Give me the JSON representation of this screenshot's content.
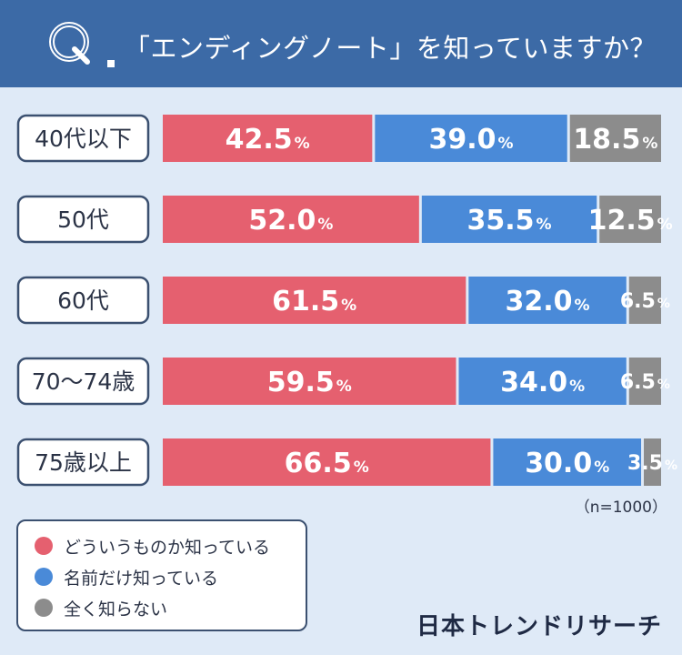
{
  "header": {
    "q_letter": "Q",
    "title": "「エンディングノート」を知っていますか？"
  },
  "chart_data": {
    "type": "bar",
    "orientation": "horizontal",
    "stacked": true,
    "percent_stacked": true,
    "title": "「エンディングノート」を知っていますか？",
    "categories": [
      "40代以下",
      "50代",
      "60代",
      "70〜74歳",
      "75歳以上"
    ],
    "series": [
      {
        "name": "どういうものか知っている",
        "color": "#e5606f",
        "values": [
          42.5,
          52.0,
          61.5,
          59.5,
          66.5
        ]
      },
      {
        "name": "名前だけ知っている",
        "color": "#4a8ad8",
        "values": [
          39.0,
          35.5,
          32.0,
          34.0,
          30.0
        ]
      },
      {
        "name": "全く知らない",
        "color": "#8c8c8c",
        "values": [
          18.5,
          12.5,
          6.5,
          6.5,
          3.5
        ]
      }
    ],
    "unit": "%",
    "xlim": [
      0,
      100
    ],
    "legend": "bottom-left"
  },
  "note": "（n=1000）",
  "legend": {
    "items": [
      {
        "label": "どういうものか知っている",
        "color": "#e5606f"
      },
      {
        "label": "名前だけ知っている",
        "color": "#4a8ad8"
      },
      {
        "label": "全く知らない",
        "color": "#8c8c8c"
      }
    ]
  },
  "brand": "日本トレンドリサーチ",
  "colors": {
    "header": "#3c6aa6",
    "background": "#dfeaf7",
    "border": "#3b5070"
  }
}
